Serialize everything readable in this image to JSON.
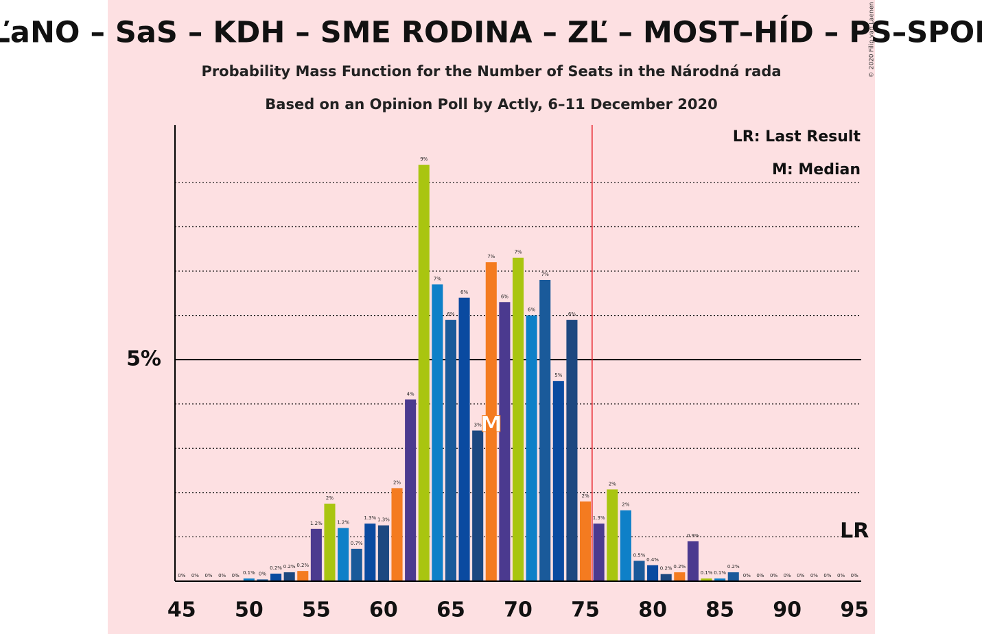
{
  "chart_data": {
    "type": "bar",
    "title": "OĽaNO – SaS – KDH – SME RODINA – ZĽ – MOST–HÍD – PS–SPOLU",
    "subtitle": "Probability Mass Function for the Number of Seats in the Národná rada",
    "subtitle2": "Based on an Opinion Poll by Actly, 6–11 December 2020",
    "copyright": "© 2020 Filip van Laenen",
    "legend": [
      "LR: Last Result",
      "M: Median"
    ],
    "median_label": "M",
    "median": 68,
    "last_result_label": "LR",
    "last_result": 95,
    "threshold": 75.5,
    "x": [
      45,
      46,
      47,
      48,
      49,
      50,
      51,
      52,
      53,
      54,
      55,
      56,
      57,
      58,
      59,
      60,
      61,
      62,
      63,
      64,
      65,
      66,
      67,
      68,
      69,
      70,
      71,
      72,
      73,
      74,
      75,
      76,
      77,
      78,
      79,
      80,
      81,
      82,
      83,
      84,
      85,
      86,
      87,
      88,
      89,
      90,
      91,
      92,
      93,
      94,
      95
    ],
    "values": [
      0,
      0,
      0,
      0,
      0,
      0.06,
      0.04,
      0.17,
      0.2,
      0.23,
      1.18,
      1.75,
      1.2,
      0.73,
      1.3,
      1.26,
      2.1,
      4.1,
      9.4,
      6.7,
      5.9,
      6.4,
      3.4,
      7.2,
      6.3,
      7.3,
      6.0,
      6.8,
      4.52,
      5.9,
      1.8,
      1.3,
      2.07,
      1.6,
      0.46,
      0.36,
      0.16,
      0.2,
      0.9,
      0.06,
      0.06,
      0.2,
      0,
      0,
      0,
      0,
      0,
      0,
      0,
      0,
      0
    ],
    "value_labels": [
      "0%",
      "0%",
      "0%",
      "0%",
      "0%",
      "0.1%",
      "0%",
      "0.2%",
      "0.2%",
      "0.2%",
      "1.2%",
      "2%",
      "1.2%",
      "0.7%",
      "1.3%",
      "1.3%",
      "2%",
      "4%",
      "9%",
      "7%",
      "6%",
      "6%",
      "3%",
      "7%",
      "6%",
      "7%",
      "6%",
      "7%",
      "5%",
      "6%",
      "2%",
      "1.3%",
      "2%",
      "2%",
      "0.5%",
      "0.4%",
      "0.2%",
      "0.2%",
      "0.9%",
      "0.1%",
      "0.1%",
      "0.2%",
      "0%",
      "0%",
      "0%",
      "0%",
      "0%",
      "0%",
      "0%",
      "0%",
      "0%"
    ],
    "colors": [
      "#0a4aa0",
      "#1d4880",
      "#f47b20",
      "#4b3a8f",
      "#a9c510",
      "#0e80c8",
      "#1a5a9a",
      "#0a4aa0",
      "#1d4880",
      "#f47b20",
      "#4b3a8f",
      "#a9c510",
      "#0e80c8",
      "#1a5a9a",
      "#0a4aa0",
      "#1d4880",
      "#f47b20",
      "#4b3a8f",
      "#a9c510",
      "#0e80c8",
      "#1a5a9a",
      "#0a4aa0",
      "#1d4880",
      "#f47b20",
      "#4b3a8f",
      "#a9c510",
      "#0e80c8",
      "#1a5a9a",
      "#0a4aa0",
      "#1d4880",
      "#f47b20",
      "#4b3a8f",
      "#a9c510",
      "#0e80c8",
      "#1a5a9a",
      "#0a4aa0",
      "#1d4880",
      "#f47b20",
      "#4b3a8f",
      "#a9c510",
      "#0e80c8",
      "#1a5a9a",
      "#0a4aa0",
      "#1d4880",
      "#f47b20",
      "#4b3a8f",
      "#a9c510",
      "#0e80c8",
      "#1a5a9a",
      "#0a4aa0",
      "#1d4880"
    ],
    "xlim": [
      44.5,
      95.5
    ],
    "ylim": [
      0,
      10.3
    ],
    "xticks": [
      45,
      50,
      55,
      60,
      65,
      70,
      75,
      80,
      85,
      90,
      95
    ],
    "yticks": [
      {
        "value": 5,
        "label": "5%"
      }
    ],
    "minor_yticks": [
      1,
      2,
      3,
      4,
      6,
      7,
      8,
      9
    ]
  }
}
